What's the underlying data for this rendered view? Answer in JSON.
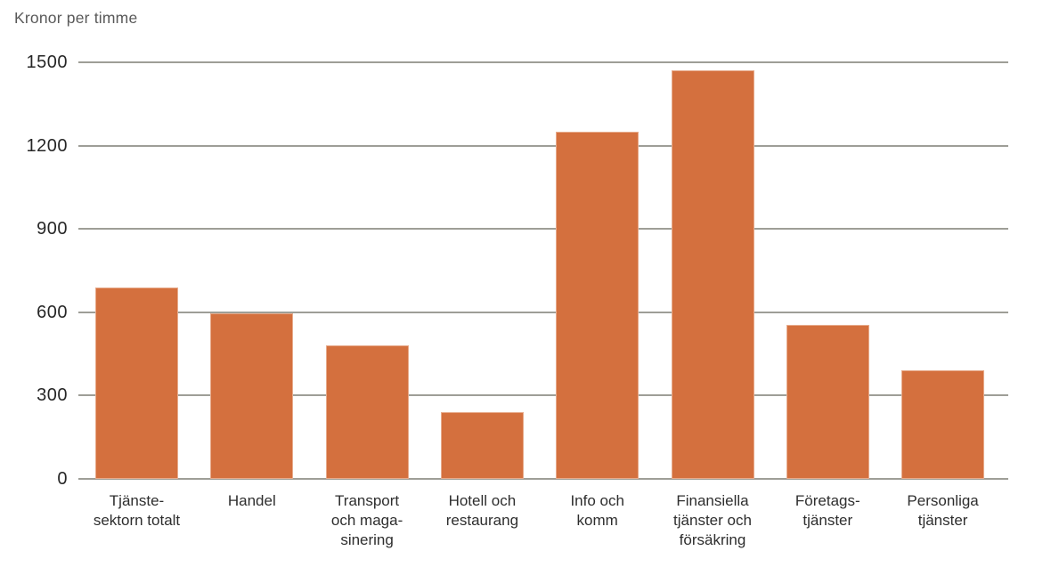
{
  "chart_data": {
    "type": "bar",
    "title": "Kronor per timme",
    "xlabel": "",
    "ylabel": "Kronor per timme",
    "categories": [
      "Tjänste-\nsektorn totalt",
      "Handel",
      "Transport\noch maga-\nsinering",
      "Hotell och\nrestaurang",
      "Info och\nkomm",
      "Finansiella\ntjänster och\nförsäkring",
      "Företags-\ntjänster",
      "Personliga\ntjänster"
    ],
    "values": [
      690,
      595,
      480,
      240,
      1250,
      1470,
      555,
      390
    ],
    "ylim": [
      0,
      1500
    ],
    "yticks": [
      0,
      300,
      600,
      900,
      1200,
      1500
    ],
    "grid": true,
    "legend_position": "none",
    "colors": {
      "bar": "#d4703e",
      "gridline": "#9e9e97",
      "tick_text": "#262626",
      "title_text": "#595959",
      "background": "#ffffff"
    }
  }
}
